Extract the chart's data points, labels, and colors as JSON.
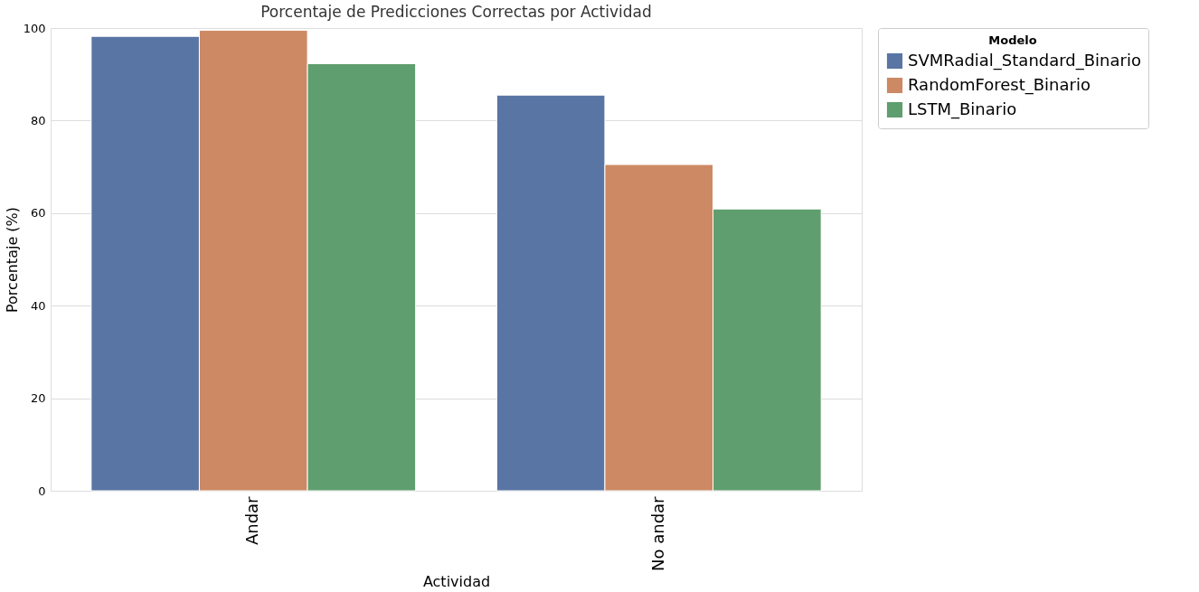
{
  "chart_data": {
    "type": "bar",
    "title": "Porcentaje de Predicciones Correctas por Actividad",
    "xlabel": "Actividad",
    "ylabel": "Porcentaje (%)",
    "legend_title": "Modelo",
    "categories": [
      "Andar",
      "No andar"
    ],
    "series": [
      {
        "name": "SVMRadial_Standard_Binario",
        "color": "#5975a4",
        "values": [
          98.2,
          85.5
        ]
      },
      {
        "name": "RandomForest_Binario",
        "color": "#cc8963",
        "values": [
          99.5,
          70.5
        ]
      },
      {
        "name": "LSTM_Binario",
        "color": "#5f9e6e",
        "values": [
          92.3,
          60.9
        ]
      }
    ],
    "ylim": [
      0,
      100
    ],
    "yticks": [
      0,
      20,
      40,
      60,
      80,
      100
    ],
    "grid": "y",
    "legend": "top right"
  }
}
